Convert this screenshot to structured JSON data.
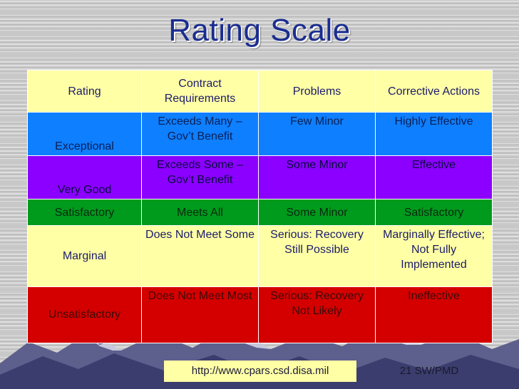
{
  "title": "Rating Scale",
  "table": {
    "headers": [
      "Rating",
      "Contract Requirements",
      "Problems",
      "Corrective Actions"
    ],
    "rows": [
      {
        "rating": "Exceptional",
        "requirements": "Exceeds Many – Gov’t Benefit",
        "problems": "Few Minor",
        "actions": "Highly Effective",
        "color": "#0e7fff"
      },
      {
        "rating": "Very Good",
        "requirements": "Exceeds Some – Gov’t Benefit",
        "problems": "Some Minor",
        "actions": "Effective",
        "color": "#8b00ff"
      },
      {
        "rating": "Satisfactory",
        "requirements": "Meets All",
        "problems": "Some Minor",
        "actions": "Satisfactory",
        "color": "#009a1d"
      },
      {
        "rating": "Marginal",
        "requirements": "Does Not Meet Some",
        "problems": "Serious: Recovery Still Possible",
        "actions": "Marginally Effective; Not Fully Implemented",
        "color": "#ffffa6"
      },
      {
        "rating": "Unsatisfactory",
        "requirements": "Does Not Meet Most",
        "problems": "Serious: Recovery Not Likely",
        "actions": "Ineffective",
        "color": "#d40000"
      }
    ]
  },
  "footer": {
    "url": "http://www.cpars.csd.disa.mil",
    "org": "21 SW/PMD"
  }
}
